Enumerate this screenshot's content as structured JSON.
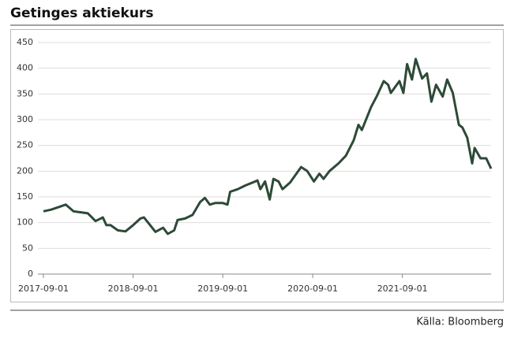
{
  "chart_data": {
    "type": "line",
    "title": "Getinges aktiekurs",
    "source": "Källa: Bloomberg",
    "x": [
      "2017-09-01",
      "2017-10-01",
      "2017-11-01",
      "2017-12-01",
      "2018-01-01",
      "2018-02-01",
      "2018-03-01",
      "2018-04-01",
      "2018-05-01",
      "2018-05-15",
      "2018-06-01",
      "2018-07-01",
      "2018-08-01",
      "2018-09-01",
      "2018-10-01",
      "2018-10-15",
      "2018-11-01",
      "2018-12-01",
      "2019-01-01",
      "2019-01-20",
      "2019-02-15",
      "2019-03-01",
      "2019-04-01",
      "2019-05-01",
      "2019-06-01",
      "2019-06-20",
      "2019-07-10",
      "2019-08-01",
      "2019-09-01",
      "2019-09-20",
      "2019-10-01",
      "2019-11-01",
      "2019-12-01",
      "2020-01-01",
      "2020-01-20",
      "2020-02-01",
      "2020-02-20",
      "2020-03-10",
      "2020-03-25",
      "2020-04-15",
      "2020-05-01",
      "2020-06-01",
      "2020-07-16",
      "2020-08-10",
      "2020-09-06",
      "2020-09-28",
      "2020-10-15",
      "2020-11-08",
      "2020-12-15",
      "2021-01-14",
      "2021-02-15",
      "2021-03-06",
      "2021-03-20",
      "2021-04-27",
      "2021-05-19",
      "2021-06-17",
      "2021-07-05",
      "2021-07-16",
      "2021-08-20",
      "2021-09-05",
      "2021-09-20",
      "2021-10-10",
      "2021-10-25",
      "2021-11-20",
      "2021-12-10",
      "2021-12-28",
      "2022-01-16",
      "2022-02-12",
      "2022-03-02",
      "2022-03-25",
      "2022-04-19",
      "2022-05-03",
      "2022-05-23",
      "2022-06-12",
      "2022-06-22",
      "2022-07-16",
      "2022-08-08",
      "2022-08-28"
    ],
    "series": [
      {
        "name": "Getinge",
        "color": "#2d4a37",
        "values": [
          122,
          125,
          130,
          135,
          122,
          120,
          118,
          103,
          110,
          95,
          95,
          85,
          83,
          95,
          108,
          110,
          100,
          82,
          90,
          78,
          85,
          105,
          108,
          115,
          140,
          148,
          135,
          138,
          138,
          135,
          160,
          165,
          172,
          178,
          182,
          165,
          180,
          145,
          185,
          180,
          165,
          178,
          208,
          200,
          180,
          195,
          185,
          200,
          215,
          230,
          260,
          290,
          280,
          325,
          345,
          375,
          368,
          352,
          375,
          352,
          408,
          378,
          418,
          380,
          390,
          335,
          368,
          345,
          378,
          352,
          290,
          285,
          265,
          215,
          245,
          225,
          225,
          205
        ]
      }
    ],
    "xlim": [
      "2017-09-01",
      "2022-08-28"
    ],
    "xticks": [
      "2017-09-01",
      "2018-09-01",
      "2019-09-01",
      "2020-09-01",
      "2021-09-01"
    ],
    "ylim": [
      0,
      450
    ],
    "yticks": [
      0,
      50,
      100,
      150,
      200,
      250,
      300,
      350,
      400,
      450
    ],
    "grid": true
  }
}
